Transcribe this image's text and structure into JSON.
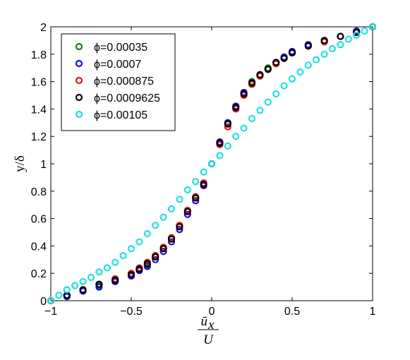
{
  "chart_data": {
    "type": "scatter",
    "xlabel": {
      "numerator": "ū",
      "subscript": "x",
      "denominator": "U"
    },
    "ylabel": "y/δ",
    "xlim": [
      -1,
      1
    ],
    "ylim": [
      0,
      2
    ],
    "xticks": [
      "−1",
      "−0.5",
      "0",
      "0.5",
      "1"
    ],
    "xtick_values": [
      -1,
      -0.5,
      0,
      0.5,
      1
    ],
    "yticks": [
      "0",
      "0.2",
      "0.4",
      "0.6",
      "0.8",
      "1",
      "1.2",
      "1.4",
      "1.6",
      "1.8",
      "2"
    ],
    "ytick_values": [
      0,
      0.2,
      0.4,
      0.6,
      0.8,
      1,
      1.2,
      1.4,
      1.6,
      1.8,
      2
    ],
    "grid": false,
    "legend_position": "top-left",
    "marker": "open-circle",
    "series": [
      {
        "name": "ϕ=0.00035",
        "color": "#1a7a1a",
        "x": [
          -1,
          -0.9,
          -0.8,
          -0.7,
          -0.6,
          -0.5,
          -0.45,
          -0.4,
          -0.35,
          -0.3,
          -0.25,
          -0.2,
          -0.15,
          -0.1,
          -0.05,
          0,
          0.05,
          0.1,
          0.15,
          0.2,
          0.25,
          0.3,
          0.35,
          0.4,
          0.45,
          0.5,
          0.6,
          0.7,
          0.8,
          0.9,
          1
        ],
        "y": [
          0,
          0.04,
          0.08,
          0.11,
          0.15,
          0.19,
          0.23,
          0.26,
          0.32,
          0.38,
          0.45,
          0.55,
          0.66,
          0.75,
          0.85,
          1,
          1.15,
          1.3,
          1.42,
          1.52,
          1.6,
          1.65,
          1.7,
          1.74,
          1.77,
          1.82,
          1.86,
          1.9,
          1.93,
          1.96,
          2
        ]
      },
      {
        "name": "ϕ=0.0007",
        "color": "#1010e0",
        "x": [
          -1,
          -0.9,
          -0.8,
          -0.7,
          -0.6,
          -0.5,
          -0.45,
          -0.4,
          -0.35,
          -0.3,
          -0.25,
          -0.2,
          -0.15,
          -0.1,
          -0.05,
          0,
          0.05,
          0.1,
          0.15,
          0.2,
          0.25,
          0.3,
          0.35,
          0.4,
          0.45,
          0.5,
          0.6,
          0.7,
          0.8,
          0.9,
          1
        ],
        "y": [
          0,
          0.03,
          0.07,
          0.1,
          0.14,
          0.18,
          0.22,
          0.25,
          0.3,
          0.36,
          0.43,
          0.52,
          0.63,
          0.73,
          0.84,
          1,
          1.16,
          1.3,
          1.42,
          1.52,
          1.59,
          1.65,
          1.69,
          1.74,
          1.78,
          1.82,
          1.87,
          1.9,
          1.93,
          1.97,
          2
        ]
      },
      {
        "name": "ϕ=0.000875",
        "color": "#e01a1a",
        "x": [
          -1,
          -0.9,
          -0.8,
          -0.7,
          -0.6,
          -0.5,
          -0.45,
          -0.4,
          -0.35,
          -0.3,
          -0.25,
          -0.2,
          -0.15,
          -0.1,
          -0.05,
          0,
          0.05,
          0.1,
          0.15,
          0.2,
          0.25,
          0.3,
          0.35,
          0.4,
          0.45,
          0.5,
          0.6,
          0.7,
          0.8,
          0.9,
          1
        ],
        "y": [
          0,
          0.04,
          0.08,
          0.12,
          0.16,
          0.2,
          0.24,
          0.28,
          0.33,
          0.39,
          0.46,
          0.55,
          0.66,
          0.76,
          0.86,
          1,
          1.14,
          1.27,
          1.4,
          1.5,
          1.58,
          1.64,
          1.69,
          1.73,
          1.77,
          1.81,
          1.86,
          1.89,
          1.93,
          1.96,
          2
        ]
      },
      {
        "name": "ϕ=0.0009625",
        "color": "#000000",
        "x": [
          -1,
          -0.9,
          -0.8,
          -0.7,
          -0.6,
          -0.5,
          -0.45,
          -0.4,
          -0.35,
          -0.3,
          -0.25,
          -0.2,
          -0.15,
          -0.1,
          -0.05,
          0,
          0.05,
          0.1,
          0.15,
          0.2,
          0.25,
          0.3,
          0.35,
          0.4,
          0.45,
          0.5,
          0.6,
          0.7,
          0.8,
          0.9,
          1
        ],
        "y": [
          0,
          0.04,
          0.08,
          0.12,
          0.15,
          0.19,
          0.23,
          0.27,
          0.32,
          0.38,
          0.45,
          0.54,
          0.65,
          0.75,
          0.85,
          1,
          1.15,
          1.29,
          1.41,
          1.51,
          1.59,
          1.65,
          1.69,
          1.74,
          1.77,
          1.81,
          1.86,
          1.9,
          1.93,
          1.96,
          2
        ]
      },
      {
        "name": "ϕ=0.00105",
        "color": "#20e0e0",
        "x": [
          -1,
          -0.95,
          -0.9,
          -0.85,
          -0.8,
          -0.75,
          -0.7,
          -0.65,
          -0.6,
          -0.55,
          -0.5,
          -0.45,
          -0.4,
          -0.35,
          -0.3,
          -0.25,
          -0.2,
          -0.15,
          -0.1,
          -0.05,
          0,
          0.05,
          0.1,
          0.15,
          0.2,
          0.25,
          0.3,
          0.35,
          0.4,
          0.45,
          0.5,
          0.55,
          0.6,
          0.65,
          0.7,
          0.75,
          0.8,
          0.85,
          0.9,
          0.95,
          1
        ],
        "y": [
          0,
          0.04,
          0.08,
          0.11,
          0.14,
          0.17,
          0.21,
          0.24,
          0.28,
          0.33,
          0.38,
          0.43,
          0.49,
          0.55,
          0.61,
          0.67,
          0.74,
          0.81,
          0.87,
          0.94,
          1,
          1.06,
          1.13,
          1.2,
          1.26,
          1.33,
          1.39,
          1.45,
          1.51,
          1.57,
          1.62,
          1.67,
          1.72,
          1.76,
          1.8,
          1.84,
          1.87,
          1.91,
          1.94,
          1.97,
          2
        ]
      }
    ]
  }
}
